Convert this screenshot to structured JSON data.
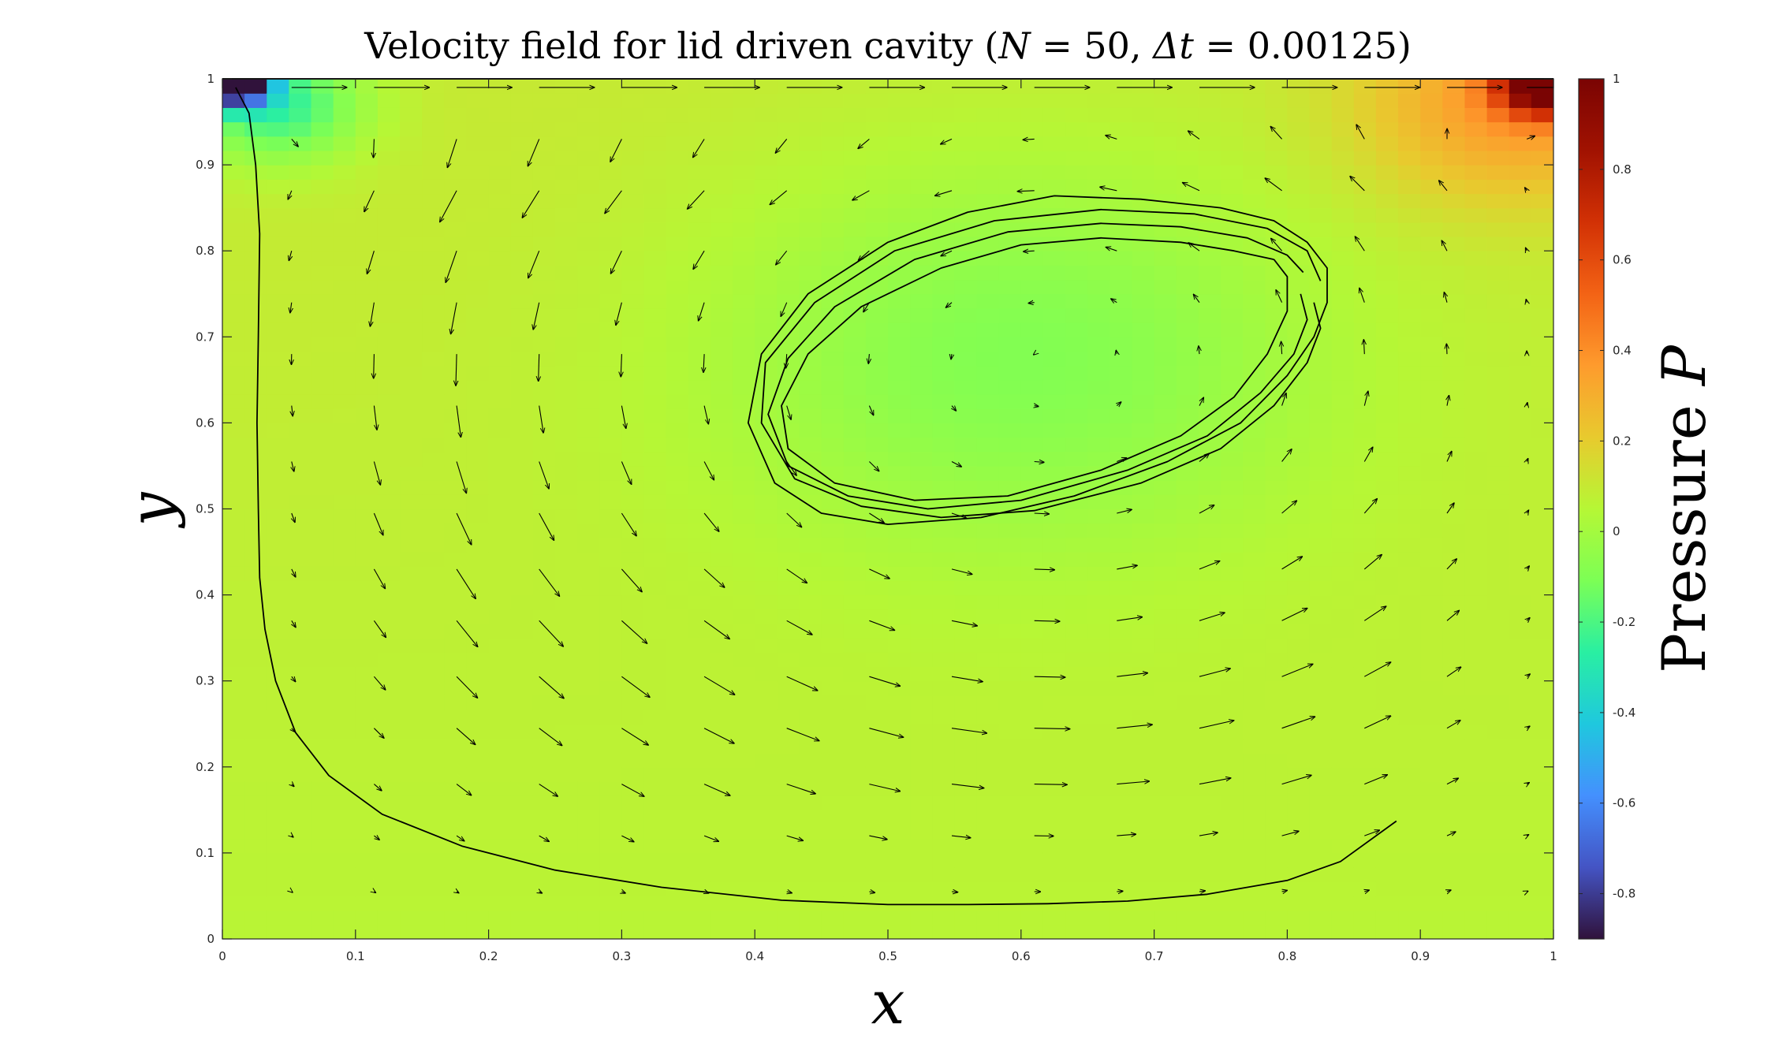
{
  "chart_data": {
    "type": "heatmap",
    "title": "Velocity field for lid driven cavity (N = 50, Δt = 0.00125)",
    "title_parts": {
      "prefix": "Velocity field for lid driven cavity (",
      "n_symbol": "N",
      "n_value": " = 50, ",
      "dt_symbol": "Δt",
      "dt_value": " = 0.00125)"
    },
    "xlabel": "x",
    "ylabel": "y",
    "colorbar_label": "Pressure",
    "colorbar_symbol": "P",
    "xlim": [
      0,
      1
    ],
    "ylim": [
      0,
      1
    ],
    "clim": [
      -0.9,
      1
    ],
    "xticks": [
      0,
      0.1,
      0.2,
      0.3,
      0.4,
      0.5,
      0.6,
      0.7,
      0.8,
      0.9,
      1
    ],
    "yticks": [
      0,
      0.1,
      0.2,
      0.3,
      0.4,
      0.5,
      0.6,
      0.7,
      0.8,
      0.9,
      1
    ],
    "xtick_labels": [
      "0",
      "0.1",
      "0.2",
      "0.3",
      "0.4",
      "0.5",
      "0.6",
      "0.7",
      "0.8",
      "0.9",
      "1"
    ],
    "ytick_labels": [
      "0",
      "0.1",
      "0.2",
      "0.3",
      "0.4",
      "0.5",
      "0.6",
      "0.7",
      "0.8",
      "0.9",
      "1"
    ],
    "cticks": [
      -0.8,
      -0.6,
      -0.4,
      -0.2,
      0,
      0.2,
      0.4,
      0.6,
      0.8,
      1
    ],
    "ctick_labels": [
      "-0.8",
      "-0.6",
      "-0.4",
      "-0.2",
      "0",
      "0.2",
      "0.4",
      "0.6",
      "0.8",
      "1"
    ],
    "colormap": [
      "#30123b",
      "#4454c4",
      "#4490fe",
      "#1fc8de",
      "#29efa2",
      "#7cff55",
      "#b6f735",
      "#e8ca2e",
      "#fe9b2d",
      "#f36315",
      "#d23105",
      "#a11201",
      "#7a0403"
    ],
    "pressure_features": [
      {
        "x": 0.02,
        "y": 0.99,
        "p": -0.85
      },
      {
        "x": 0.04,
        "y": 0.96,
        "p": -0.25
      },
      {
        "x": 0.99,
        "y": 0.99,
        "p": 0.95
      },
      {
        "x": 0.96,
        "y": 0.97,
        "p": 0.45
      },
      {
        "x": 0.6,
        "y": 0.68,
        "p": -0.12
      }
    ],
    "quiver_x": [
      0.052,
      0.114,
      0.176,
      0.238,
      0.3,
      0.362,
      0.424,
      0.486,
      0.548,
      0.61,
      0.672,
      0.734,
      0.796,
      0.858,
      0.92,
      0.98
    ],
    "quiver_y": [
      0.99,
      0.93,
      0.87,
      0.8,
      0.74,
      0.68,
      0.62,
      0.555,
      0.495,
      0.43,
      0.37,
      0.305,
      0.245,
      0.18,
      0.12,
      0.055
    ],
    "streamlines": [
      {
        "name": "",
        "points": [
          [
            0.01,
            0.99
          ],
          [
            0.02,
            0.96
          ],
          [
            0.025,
            0.9
          ],
          [
            0.028,
            0.82
          ],
          [
            0.027,
            0.7
          ],
          [
            0.026,
            0.6
          ],
          [
            0.027,
            0.5
          ],
          [
            0.028,
            0.42
          ],
          [
            0.032,
            0.36
          ],
          [
            0.04,
            0.3
          ],
          [
            0.055,
            0.24
          ],
          [
            0.08,
            0.19
          ],
          [
            0.12,
            0.145
          ],
          [
            0.18,
            0.108
          ],
          [
            0.25,
            0.08
          ],
          [
            0.33,
            0.06
          ],
          [
            0.42,
            0.045
          ],
          [
            0.5,
            0.04
          ],
          [
            0.56,
            0.04
          ],
          [
            0.62,
            0.041
          ],
          [
            0.68,
            0.044
          ],
          [
            0.74,
            0.052
          ],
          [
            0.8,
            0.068
          ],
          [
            0.84,
            0.09
          ],
          [
            0.882,
            0.137
          ]
        ]
      },
      {
        "name": "",
        "points": [
          [
            0.79,
            0.79
          ],
          [
            0.8,
            0.77
          ],
          [
            0.8,
            0.73
          ],
          [
            0.785,
            0.68
          ],
          [
            0.76,
            0.63
          ],
          [
            0.72,
            0.585
          ],
          [
            0.66,
            0.545
          ],
          [
            0.59,
            0.515
          ],
          [
            0.52,
            0.51
          ],
          [
            0.46,
            0.53
          ],
          [
            0.425,
            0.57
          ],
          [
            0.42,
            0.62
          ],
          [
            0.44,
            0.68
          ],
          [
            0.48,
            0.735
          ],
          [
            0.54,
            0.78
          ],
          [
            0.6,
            0.807
          ],
          [
            0.66,
            0.815
          ],
          [
            0.72,
            0.81
          ],
          [
            0.76,
            0.8
          ],
          [
            0.79,
            0.79
          ]
        ]
      },
      {
        "name": "",
        "points": [
          [
            0.81,
            0.75
          ],
          [
            0.815,
            0.72
          ],
          [
            0.805,
            0.68
          ],
          [
            0.78,
            0.635
          ],
          [
            0.74,
            0.585
          ],
          [
            0.68,
            0.545
          ],
          [
            0.6,
            0.51
          ],
          [
            0.53,
            0.5
          ],
          [
            0.47,
            0.515
          ],
          [
            0.425,
            0.55
          ],
          [
            0.41,
            0.61
          ],
          [
            0.425,
            0.675
          ],
          [
            0.46,
            0.735
          ],
          [
            0.52,
            0.79
          ],
          [
            0.59,
            0.822
          ],
          [
            0.66,
            0.832
          ],
          [
            0.72,
            0.828
          ],
          [
            0.77,
            0.815
          ],
          [
            0.8,
            0.795
          ],
          [
            0.812,
            0.775
          ]
        ]
      },
      {
        "name": "",
        "points": [
          [
            0.82,
            0.74
          ],
          [
            0.825,
            0.71
          ],
          [
            0.815,
            0.67
          ],
          [
            0.79,
            0.62
          ],
          [
            0.75,
            0.57
          ],
          [
            0.69,
            0.53
          ],
          [
            0.61,
            0.498
          ],
          [
            0.54,
            0.49
          ],
          [
            0.48,
            0.503
          ],
          [
            0.43,
            0.535
          ],
          [
            0.405,
            0.6
          ],
          [
            0.408,
            0.67
          ],
          [
            0.445,
            0.74
          ],
          [
            0.505,
            0.8
          ],
          [
            0.58,
            0.835
          ],
          [
            0.66,
            0.848
          ],
          [
            0.73,
            0.843
          ],
          [
            0.785,
            0.826
          ],
          [
            0.815,
            0.8
          ],
          [
            0.825,
            0.765
          ]
        ]
      },
      {
        "name": "",
        "points": [
          [
            0.625,
            0.864
          ],
          [
            0.69,
            0.86
          ],
          [
            0.75,
            0.85
          ],
          [
            0.79,
            0.835
          ],
          [
            0.815,
            0.81
          ],
          [
            0.83,
            0.78
          ],
          [
            0.83,
            0.74
          ],
          [
            0.82,
            0.7
          ],
          [
            0.8,
            0.655
          ],
          [
            0.765,
            0.6
          ],
          [
            0.71,
            0.555
          ],
          [
            0.64,
            0.515
          ],
          [
            0.57,
            0.49
          ],
          [
            0.5,
            0.482
          ],
          [
            0.45,
            0.495
          ],
          [
            0.415,
            0.53
          ],
          [
            0.395,
            0.6
          ],
          [
            0.405,
            0.68
          ],
          [
            0.44,
            0.75
          ],
          [
            0.5,
            0.81
          ],
          [
            0.56,
            0.845
          ],
          [
            0.625,
            0.864
          ]
        ]
      }
    ]
  }
}
